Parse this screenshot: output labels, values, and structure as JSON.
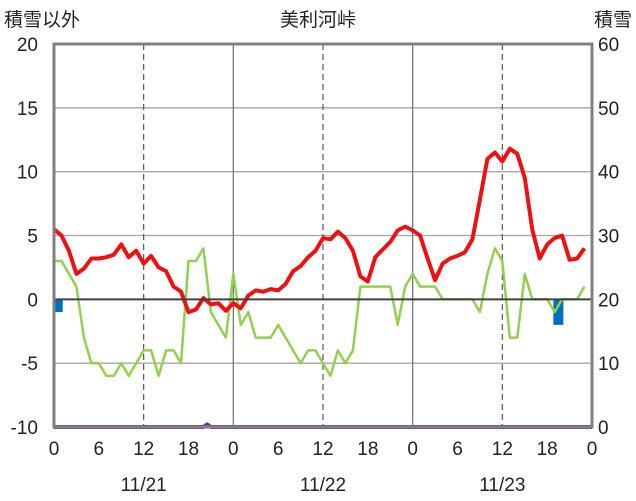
{
  "chart_data": {
    "type": "line",
    "title": "美利河峠",
    "left_axis_label": "積雪以外",
    "right_axis_label": "積雪",
    "left_ylim": [
      -10,
      20
    ],
    "left_yticks": [
      20,
      15,
      10,
      5,
      0,
      -5,
      -10
    ],
    "right_ylim": [
      0,
      60
    ],
    "right_yticks": [
      60,
      50,
      40,
      30,
      20,
      10,
      0
    ],
    "x_range_hours": [
      0,
      72
    ],
    "x_tick_labels": [
      "0",
      "6",
      "12",
      "18",
      "0",
      "6",
      "12",
      "18",
      "0",
      "6",
      "12",
      "18",
      "0"
    ],
    "date_labels": [
      "11/21",
      "11/22",
      "11/23"
    ],
    "grid": true,
    "series": [
      {
        "key": "red",
        "axis": "left",
        "color": "#ee1111",
        "x": [
          0,
          1,
          2,
          3,
          4,
          5,
          6,
          7,
          8,
          9,
          10,
          11,
          12,
          13,
          14,
          15,
          16,
          17,
          18,
          19,
          20,
          21,
          22,
          23,
          24,
          25,
          26,
          27,
          28,
          29,
          30,
          31,
          32,
          33,
          34,
          35,
          36,
          37,
          38,
          39,
          40,
          41,
          42,
          43,
          44,
          45,
          46,
          47,
          48,
          49,
          50,
          51,
          52,
          53,
          54,
          55,
          56,
          57,
          58,
          59,
          60,
          61,
          62,
          63,
          64,
          65,
          66,
          67,
          68,
          69,
          70,
          71
        ],
        "values": [
          5.5,
          5.0,
          3.8,
          2.0,
          2.4,
          3.2,
          3.2,
          3.3,
          3.5,
          4.3,
          3.3,
          3.8,
          2.8,
          3.4,
          2.5,
          2.2,
          1.0,
          0.6,
          -1.0,
          -0.8,
          0.1,
          -0.4,
          -0.3,
          -0.9,
          -0.3,
          -0.7,
          0.3,
          0.7,
          0.6,
          0.8,
          0.7,
          1.2,
          2.2,
          2.6,
          3.3,
          3.8,
          4.8,
          4.7,
          5.3,
          4.8,
          3.8,
          1.8,
          1.4,
          3.3,
          3.9,
          4.5,
          5.4,
          5.7,
          5.4,
          5.0,
          3.2,
          1.5,
          2.8,
          3.2,
          3.4,
          3.7,
          4.7,
          7.8,
          11.0,
          11.5,
          10.8,
          11.8,
          11.4,
          9.5,
          5.5,
          3.2,
          4.3,
          4.8,
          5.0,
          3.1,
          3.2,
          4.0
        ]
      },
      {
        "key": "green",
        "axis": "left",
        "color": "#92d050",
        "x": [
          0,
          1,
          2,
          3,
          4,
          5,
          6,
          7,
          8,
          9,
          10,
          11,
          12,
          13,
          14,
          15,
          16,
          17,
          18,
          19,
          20,
          21,
          22,
          23,
          24,
          25,
          26,
          27,
          28,
          29,
          30,
          31,
          32,
          33,
          34,
          35,
          36,
          37,
          38,
          39,
          40,
          41,
          42,
          43,
          44,
          45,
          46,
          47,
          48,
          49,
          50,
          51,
          52,
          53,
          54,
          55,
          56,
          57,
          58,
          59,
          60,
          61,
          62,
          63,
          64,
          65,
          66,
          67,
          68,
          69,
          70,
          71
        ],
        "values": [
          3,
          3,
          2,
          1,
          -3,
          -5,
          -5,
          -6,
          -6,
          -5,
          -6,
          -5,
          -4,
          -4,
          -6,
          -4,
          -4,
          -5,
          3,
          3,
          4,
          -1,
          -2,
          -3,
          2,
          -2,
          -1,
          -3,
          -3,
          -3,
          -2,
          -3,
          -4,
          -5,
          -4,
          -4,
          -5,
          -6,
          -4,
          -5,
          -4,
          1,
          1,
          1,
          1,
          1,
          -2,
          1,
          2,
          1,
          1,
          1,
          0,
          0,
          0,
          0,
          0,
          -1,
          2,
          4,
          3,
          -3,
          -3,
          2,
          0,
          0,
          0,
          -1,
          0,
          0,
          0,
          1
        ]
      },
      {
        "key": "purple",
        "axis": "right",
        "color": "#7030a0",
        "x": [
          0,
          20,
          20.5,
          21,
          72
        ],
        "values": [
          0,
          0,
          0.4,
          0,
          0
        ]
      }
    ],
    "bars": {
      "axis": "left",
      "color": "#0070c0",
      "items": [
        {
          "x": 0.5,
          "value": -1.0
        },
        {
          "x": 67.5,
          "value": -2.0
        }
      ]
    }
  }
}
